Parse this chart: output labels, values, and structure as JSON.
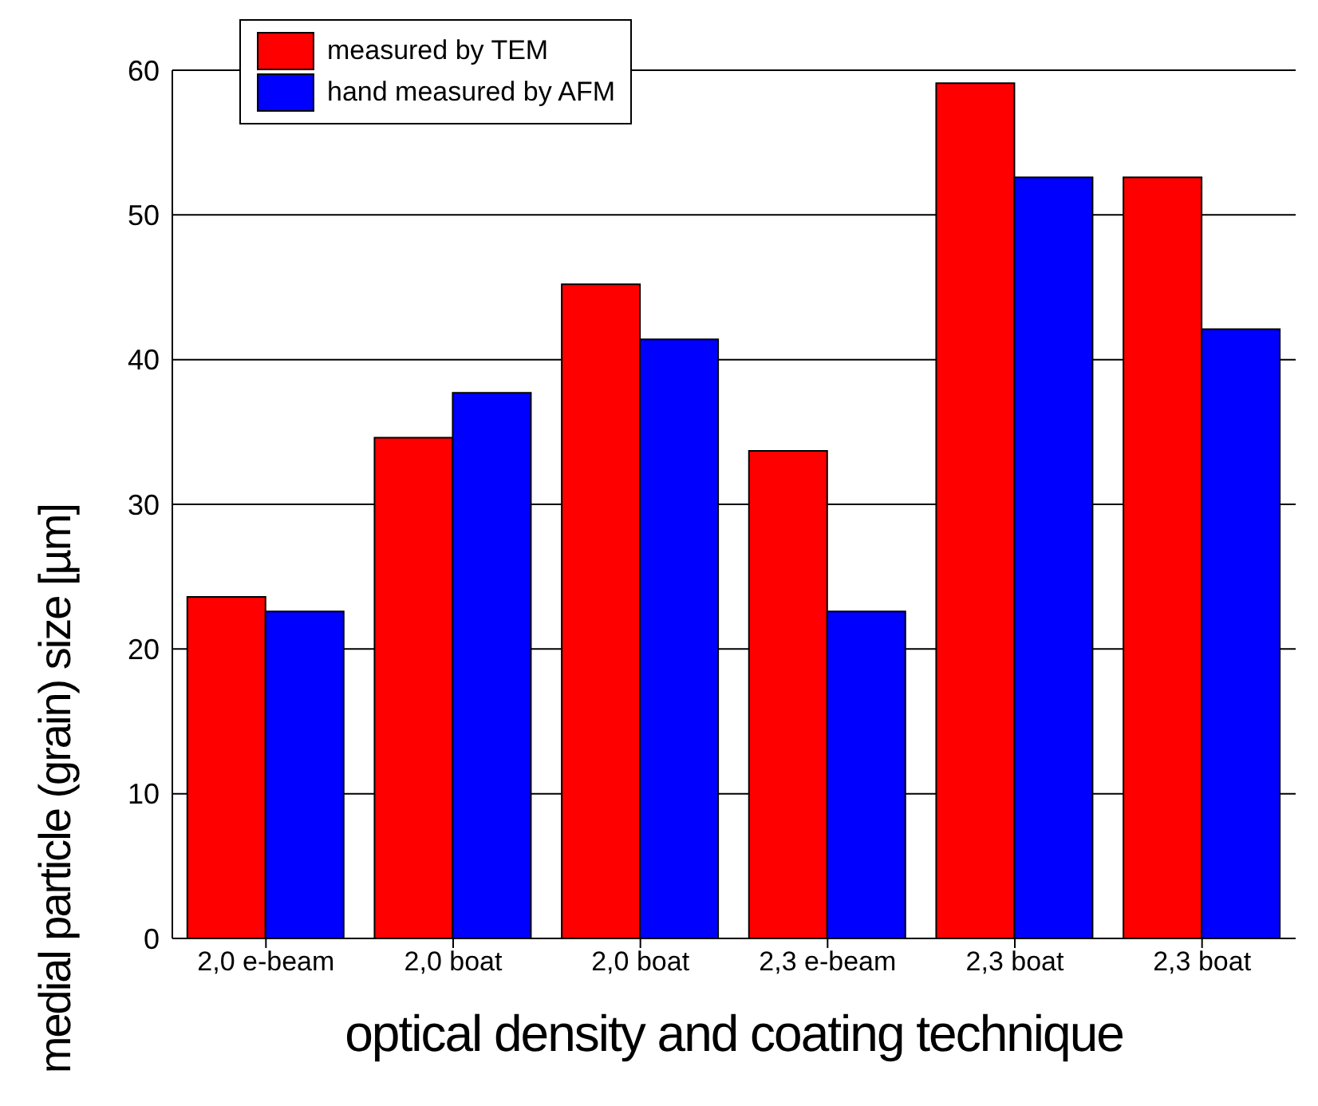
{
  "chart_data": {
    "type": "bar",
    "xlabel": "optical density and coating technique",
    "ylabel": "medial particle (grain) size [µm]",
    "categories": [
      "2,0 e-beam",
      "2,0 boat",
      "2,0 boat",
      "2,3 e-beam",
      "2,3 boat",
      "2,3 boat"
    ],
    "series": [
      {
        "name": "measured by TEM",
        "color": "#ff0000",
        "values": [
          23.6,
          34.6,
          45.2,
          33.7,
          59.1,
          52.6
        ]
      },
      {
        "name": "hand measured by AFM",
        "color": "#0000ff",
        "values": [
          22.6,
          37.7,
          41.4,
          22.6,
          52.6,
          42.1
        ]
      }
    ],
    "ylim": [
      0,
      60
    ],
    "yticks": [
      0,
      10,
      20,
      30,
      40,
      50,
      60
    ],
    "grid": "y",
    "legend": "top left"
  }
}
